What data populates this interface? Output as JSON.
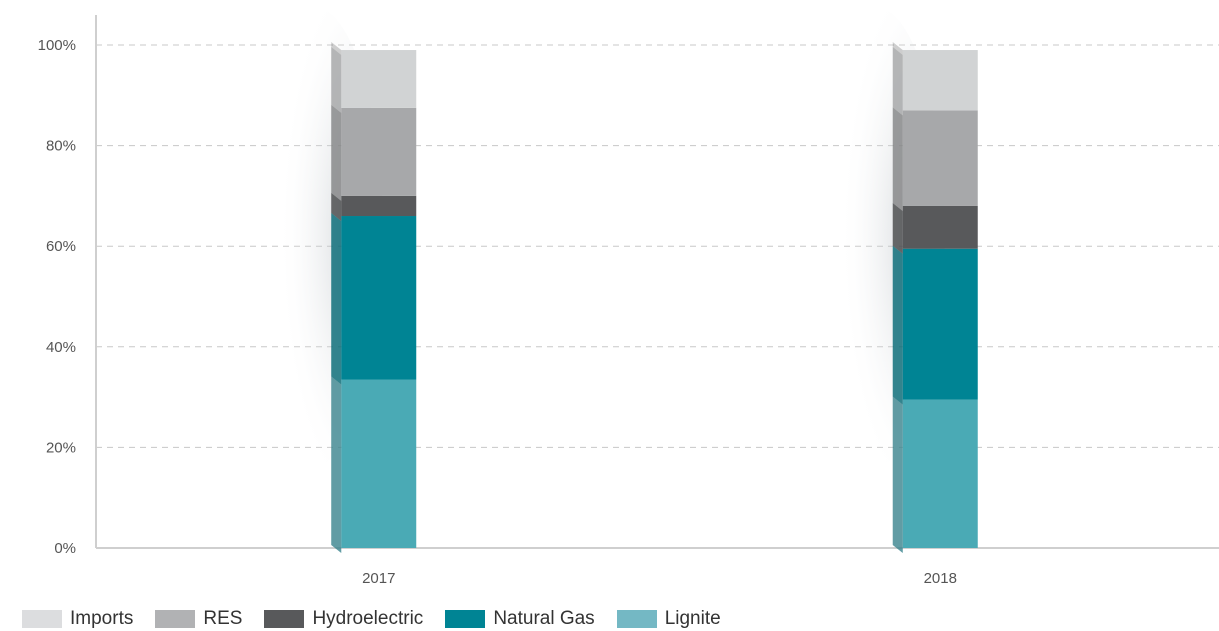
{
  "chart_data": {
    "type": "bar",
    "stacked": true,
    "categories": [
      "2017",
      "2018"
    ],
    "series": [
      {
        "name": "Lignite",
        "values": [
          33.5,
          29.5
        ],
        "color": "#4aaab5",
        "legend_color": "#74b8c4"
      },
      {
        "name": "Natural Gas",
        "values": [
          32.5,
          30.0
        ],
        "color": "#008494",
        "legend_color": "#008494"
      },
      {
        "name": "Hydroelectric",
        "values": [
          4.0,
          8.5
        ],
        "color": "#58595b",
        "legend_color": "#58595b"
      },
      {
        "name": "RES",
        "values": [
          17.5,
          19.0
        ],
        "color": "#a7a8aa",
        "legend_color": "#b1b2b4"
      },
      {
        "name": "Imports",
        "values": [
          11.5,
          12.0
        ],
        "color": "#d1d3d4",
        "legend_color": "#dcdddf"
      }
    ],
    "legend_order": [
      "Imports",
      "RES",
      "Hydroelectric",
      "Natural Gas",
      "Lignite"
    ],
    "ylim": [
      0,
      100
    ],
    "yticks": [
      "0%",
      "20%",
      "40%",
      "60%",
      "80%",
      "100%"
    ],
    "ytick_values": [
      0,
      20,
      40,
      60,
      80,
      100
    ],
    "grid": true,
    "legend_position": "bottom-left",
    "title": "",
    "xlabel": "",
    "ylabel": ""
  }
}
